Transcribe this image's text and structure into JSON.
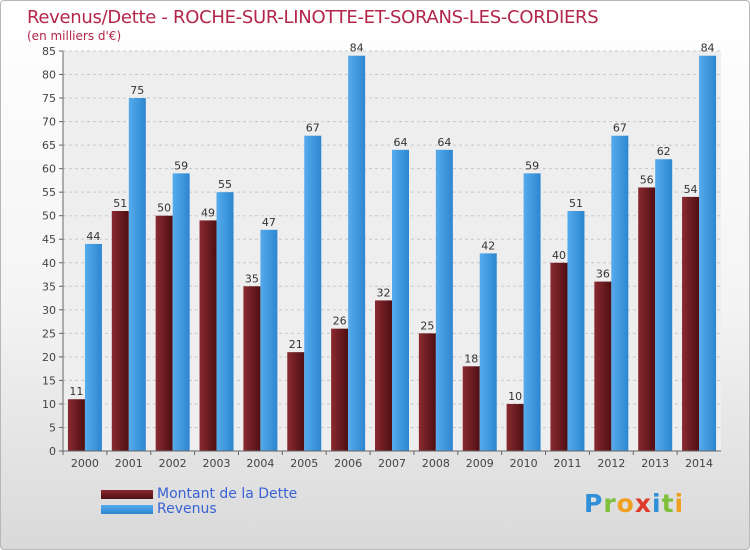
{
  "chart_data": {
    "type": "bar",
    "title": "Revenus/Dette - ROCHE-SUR-LINOTTE-ET-SORANS-LES-CORDIERS",
    "subtitle": "(en milliers d'€)",
    "categories": [
      "2000",
      "2001",
      "2002",
      "2003",
      "2004",
      "2005",
      "2006",
      "2007",
      "2008",
      "2009",
      "2010",
      "2011",
      "2012",
      "2013",
      "2014"
    ],
    "series": [
      {
        "name": "Montant de la Dette",
        "color": "#6b1a1f",
        "values": [
          11,
          51,
          50,
          49,
          35,
          21,
          26,
          32,
          25,
          18,
          10,
          40,
          36,
          56,
          54
        ]
      },
      {
        "name": "Revenus",
        "color": "#3f9ae0",
        "values": [
          44,
          75,
          59,
          55,
          47,
          67,
          84,
          64,
          64,
          42,
          59,
          51,
          67,
          62,
          84
        ]
      }
    ],
    "ylim": [
      0,
      85
    ],
    "yticks": [
      0,
      5,
      10,
      15,
      20,
      25,
      30,
      35,
      40,
      45,
      50,
      55,
      60,
      65,
      70,
      75,
      80,
      85
    ],
    "grid": true,
    "legend_position": "bottom-left"
  },
  "logo": {
    "letters": [
      {
        "char": "P",
        "color": "#2f8fd8"
      },
      {
        "char": "r",
        "color": "#7fbf3a"
      },
      {
        "char": "o",
        "color": "#f0a020"
      },
      {
        "char": "x",
        "color": "#e03a2a"
      },
      {
        "char": "i",
        "color": "#2f8fd8"
      },
      {
        "char": "t",
        "color": "#7fbf3a"
      },
      {
        "char": "i",
        "color": "#f0a020"
      }
    ]
  }
}
